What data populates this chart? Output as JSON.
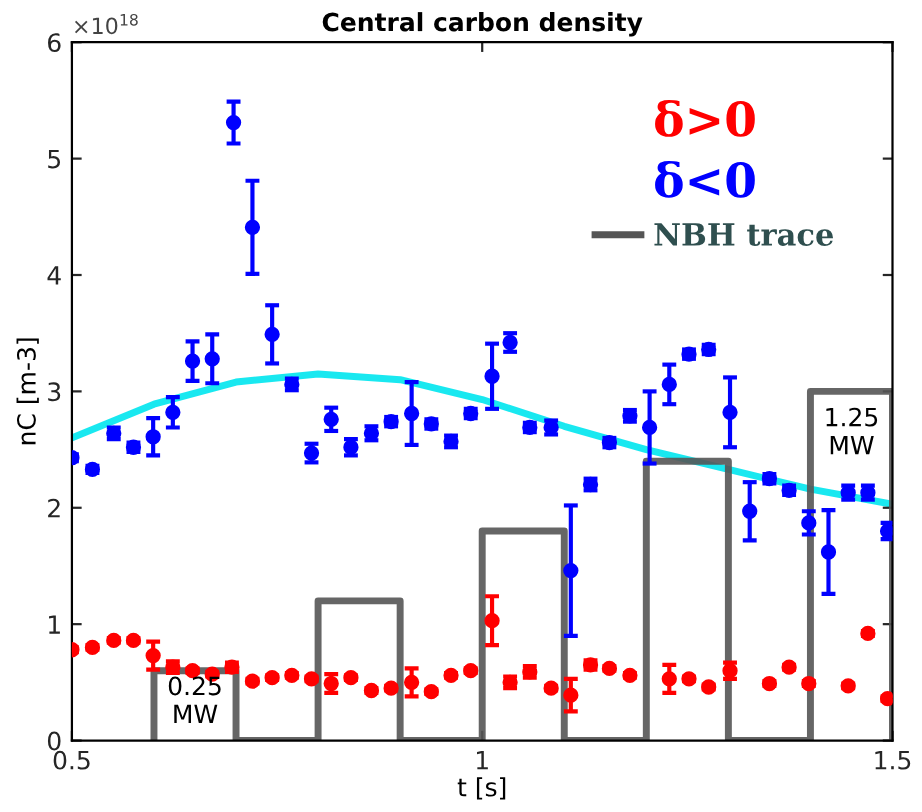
{
  "chart_data": {
    "type": "scatter",
    "title": "Central carbon density",
    "xlabel": "t [s]",
    "ylabel": "nC [m-3]",
    "xlim": [
      0.5,
      1.5
    ],
    "xticks": [
      0.5,
      1,
      1.5
    ],
    "ylim": [
      0,
      6
    ],
    "yticks": [
      0,
      1,
      2,
      3,
      4,
      5,
      6
    ],
    "grid": false,
    "legend": "top right",
    "marker": "circle",
    "annotations": [
      "×10$^{18}$",
      "0.25\nMW",
      "1.25\nMW"
    ],
    "series": [
      {
        "name": "δ>0",
        "color": "#ff0000",
        "x": [
          0.5,
          0.525,
          0.551,
          0.575,
          0.599,
          0.623,
          0.647,
          0.671,
          0.695,
          0.72,
          0.744,
          0.768,
          0.792,
          0.816,
          0.84,
          0.865,
          0.889,
          0.914,
          0.938,
          0.962,
          0.986,
          1.012,
          1.034,
          1.058,
          1.084,
          1.108,
          1.132,
          1.155,
          1.18,
          1.228,
          1.252,
          1.276,
          1.302,
          1.35,
          1.374,
          1.398,
          1.446,
          1.47,
          1.494
        ],
        "values": [
          0.78,
          0.8,
          0.86,
          0.86,
          0.73,
          0.63,
          0.6,
          0.57,
          0.63,
          0.51,
          0.54,
          0.56,
          0.53,
          0.49,
          0.54,
          0.43,
          0.45,
          0.5,
          0.42,
          0.56,
          0.6,
          1.03,
          0.5,
          0.59,
          0.45,
          0.39,
          0.65,
          0.62,
          0.56,
          0.53,
          0.53,
          0.46,
          0.6,
          0.49,
          0.63,
          0.49,
          0.47,
          0.92,
          0.36
        ],
        "errors": [
          0.02,
          0.02,
          0.02,
          0.02,
          0.12,
          0.05,
          0.02,
          0.02,
          0.04,
          0.02,
          0.02,
          0.02,
          0.02,
          0.08,
          0.02,
          0.02,
          0.02,
          0.12,
          0.02,
          0.02,
          0.02,
          0.21,
          0.05,
          0.05,
          0.02,
          0.14,
          0.04,
          0.02,
          0.02,
          0.12,
          0.02,
          0.02,
          0.07,
          0.02,
          0.02,
          0.02,
          0.02,
          0.02,
          0.02
        ]
      },
      {
        "name": "δ<0",
        "color": "#0000ff",
        "x": [
          0.5,
          0.525,
          0.551,
          0.575,
          0.599,
          0.623,
          0.647,
          0.671,
          0.697,
          0.72,
          0.744,
          0.768,
          0.792,
          0.816,
          0.84,
          0.865,
          0.889,
          0.914,
          0.938,
          0.962,
          0.986,
          1.012,
          1.034,
          1.058,
          1.084,
          1.108,
          1.132,
          1.155,
          1.18,
          1.204,
          1.228,
          1.252,
          1.276,
          1.302,
          1.326,
          1.35,
          1.374,
          1.398,
          1.422,
          1.446,
          1.47,
          1.494
        ],
        "values": [
          2.43,
          2.33,
          2.64,
          2.52,
          2.61,
          2.82,
          3.26,
          3.28,
          5.31,
          4.41,
          3.49,
          3.06,
          2.47,
          2.76,
          2.52,
          2.64,
          2.74,
          2.81,
          2.72,
          2.57,
          2.81,
          3.13,
          3.42,
          2.69,
          2.69,
          1.46,
          2.2,
          2.56,
          2.79,
          2.69,
          3.06,
          3.32,
          3.36,
          2.82,
          1.97,
          2.25,
          2.15,
          1.87,
          1.62,
          2.13,
          2.13,
          1.8
        ],
        "errors": [
          0.03,
          0.03,
          0.05,
          0.04,
          0.16,
          0.13,
          0.17,
          0.21,
          0.18,
          0.4,
          0.25,
          0.05,
          0.08,
          0.1,
          0.07,
          0.06,
          0.04,
          0.27,
          0.04,
          0.05,
          0.04,
          0.28,
          0.08,
          0.04,
          0.06,
          0.56,
          0.05,
          0.04,
          0.05,
          0.31,
          0.17,
          0.04,
          0.04,
          0.3,
          0.25,
          0.04,
          0.04,
          0.1,
          0.36,
          0.06,
          0.06,
          0.07
        ]
      },
      {
        "type": "line",
        "color": "#00e5ee",
        "marker": "none",
        "x": [
          0.5,
          0.6,
          0.7,
          0.8,
          0.9,
          1.0,
          1.1,
          1.2,
          1.3,
          1.4,
          1.5
        ],
        "values": [
          2.6,
          2.89,
          3.08,
          3.15,
          3.1,
          2.93,
          2.7,
          2.5,
          2.33,
          2.16,
          2.03
        ]
      },
      {
        "name": "NBH trace",
        "type": "line",
        "color": "#555555",
        "marker": "none",
        "x": [
          0.6,
          0.6,
          0.7,
          0.7,
          0.8,
          0.8,
          0.9,
          0.9,
          1.0,
          1.0,
          1.1,
          1.1,
          1.2,
          1.2,
          1.3,
          1.3,
          1.4,
          1.4,
          1.5,
          1.5
        ],
        "values": [
          0,
          0.6,
          0.6,
          0,
          0,
          1.2,
          1.2,
          0,
          0,
          1.8,
          1.8,
          0,
          0,
          2.4,
          2.4,
          0,
          0,
          3.0,
          3.0,
          0
        ]
      }
    ]
  }
}
